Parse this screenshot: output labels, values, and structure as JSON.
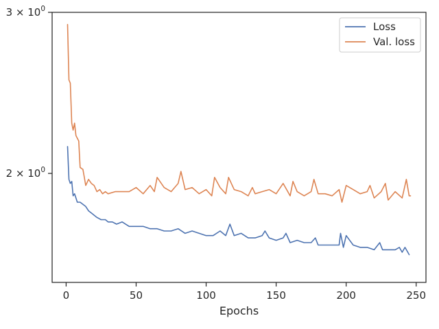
{
  "chart_data": {
    "type": "line",
    "title": "",
    "xlabel": "Epochs",
    "ylabel": "",
    "y_scale": "log",
    "xlim": [
      -10,
      257
    ],
    "ylim": [
      1.52,
      3.0
    ],
    "x_ticks": [
      0,
      50,
      100,
      150,
      200,
      250
    ],
    "x_tick_labels": [
      "0",
      "50",
      "100",
      "150",
      "200",
      "250"
    ],
    "y_ticks": [
      2,
      3
    ],
    "y_tick_labels": [
      {
        "base": "2 × 10",
        "exp": "0"
      },
      {
        "base": "3 × 10",
        "exp": "0"
      }
    ],
    "grid": false,
    "legend_position": "top-right",
    "series": [
      {
        "name": "Loss",
        "color": "#4c72b0",
        "points": [
          [
            1,
            2.14
          ],
          [
            2,
            1.97
          ],
          [
            3,
            1.95
          ],
          [
            4,
            1.96
          ],
          [
            5,
            1.89
          ],
          [
            6,
            1.9
          ],
          [
            7,
            1.88
          ],
          [
            8,
            1.86
          ],
          [
            10,
            1.86
          ],
          [
            12,
            1.85
          ],
          [
            14,
            1.84
          ],
          [
            16,
            1.82
          ],
          [
            18,
            1.81
          ],
          [
            20,
            1.8
          ],
          [
            22,
            1.79
          ],
          [
            25,
            1.78
          ],
          [
            28,
            1.78
          ],
          [
            30,
            1.77
          ],
          [
            33,
            1.77
          ],
          [
            36,
            1.76
          ],
          [
            40,
            1.77
          ],
          [
            45,
            1.75
          ],
          [
            50,
            1.75
          ],
          [
            55,
            1.75
          ],
          [
            60,
            1.74
          ],
          [
            65,
            1.74
          ],
          [
            70,
            1.73
          ],
          [
            75,
            1.73
          ],
          [
            80,
            1.74
          ],
          [
            85,
            1.72
          ],
          [
            90,
            1.73
          ],
          [
            95,
            1.72
          ],
          [
            100,
            1.71
          ],
          [
            105,
            1.71
          ],
          [
            110,
            1.73
          ],
          [
            114,
            1.71
          ],
          [
            117,
            1.76
          ],
          [
            120,
            1.71
          ],
          [
            125,
            1.72
          ],
          [
            130,
            1.7
          ],
          [
            135,
            1.7
          ],
          [
            140,
            1.71
          ],
          [
            142,
            1.73
          ],
          [
            145,
            1.7
          ],
          [
            150,
            1.69
          ],
          [
            155,
            1.7
          ],
          [
            157,
            1.72
          ],
          [
            160,
            1.68
          ],
          [
            165,
            1.69
          ],
          [
            170,
            1.68
          ],
          [
            175,
            1.68
          ],
          [
            178,
            1.7
          ],
          [
            180,
            1.67
          ],
          [
            185,
            1.67
          ],
          [
            190,
            1.67
          ],
          [
            195,
            1.67
          ],
          [
            196,
            1.72
          ],
          [
            198,
            1.66
          ],
          [
            200,
            1.71
          ],
          [
            205,
            1.67
          ],
          [
            210,
            1.66
          ],
          [
            215,
            1.66
          ],
          [
            220,
            1.65
          ],
          [
            224,
            1.68
          ],
          [
            226,
            1.65
          ],
          [
            230,
            1.65
          ],
          [
            235,
            1.65
          ],
          [
            238,
            1.66
          ],
          [
            240,
            1.64
          ],
          [
            242,
            1.66
          ],
          [
            245,
            1.63
          ]
        ]
      },
      {
        "name": "Val. loss",
        "color": "#dd8452",
        "points": [
          [
            1,
            2.91
          ],
          [
            2,
            2.53
          ],
          [
            3,
            2.51
          ],
          [
            4,
            2.27
          ],
          [
            5,
            2.23
          ],
          [
            6,
            2.27
          ],
          [
            7,
            2.2
          ],
          [
            9,
            2.17
          ],
          [
            10,
            2.03
          ],
          [
            12,
            2.02
          ],
          [
            14,
            1.94
          ],
          [
            16,
            1.97
          ],
          [
            18,
            1.95
          ],
          [
            20,
            1.94
          ],
          [
            22,
            1.91
          ],
          [
            24,
            1.92
          ],
          [
            26,
            1.9
          ],
          [
            28,
            1.91
          ],
          [
            30,
            1.9
          ],
          [
            35,
            1.91
          ],
          [
            40,
            1.91
          ],
          [
            45,
            1.91
          ],
          [
            50,
            1.93
          ],
          [
            55,
            1.9
          ],
          [
            60,
            1.94
          ],
          [
            63,
            1.91
          ],
          [
            65,
            1.98
          ],
          [
            70,
            1.93
          ],
          [
            75,
            1.91
          ],
          [
            80,
            1.95
          ],
          [
            82,
            2.01
          ],
          [
            85,
            1.92
          ],
          [
            90,
            1.93
          ],
          [
            95,
            1.9
          ],
          [
            100,
            1.92
          ],
          [
            104,
            1.89
          ],
          [
            106,
            1.98
          ],
          [
            110,
            1.93
          ],
          [
            114,
            1.9
          ],
          [
            116,
            1.98
          ],
          [
            120,
            1.92
          ],
          [
            125,
            1.91
          ],
          [
            130,
            1.89
          ],
          [
            133,
            1.93
          ],
          [
            135,
            1.9
          ],
          [
            140,
            1.91
          ],
          [
            145,
            1.92
          ],
          [
            150,
            1.9
          ],
          [
            155,
            1.95
          ],
          [
            160,
            1.89
          ],
          [
            162,
            1.96
          ],
          [
            165,
            1.91
          ],
          [
            170,
            1.89
          ],
          [
            175,
            1.91
          ],
          [
            177,
            1.97
          ],
          [
            180,
            1.9
          ],
          [
            185,
            1.9
          ],
          [
            190,
            1.89
          ],
          [
            195,
            1.92
          ],
          [
            197,
            1.86
          ],
          [
            200,
            1.94
          ],
          [
            205,
            1.92
          ],
          [
            210,
            1.9
          ],
          [
            215,
            1.91
          ],
          [
            217,
            1.94
          ],
          [
            220,
            1.88
          ],
          [
            225,
            1.91
          ],
          [
            228,
            1.95
          ],
          [
            230,
            1.87
          ],
          [
            235,
            1.91
          ],
          [
            240,
            1.88
          ],
          [
            243,
            1.97
          ],
          [
            245,
            1.89
          ],
          [
            246,
            1.89
          ]
        ]
      }
    ]
  }
}
